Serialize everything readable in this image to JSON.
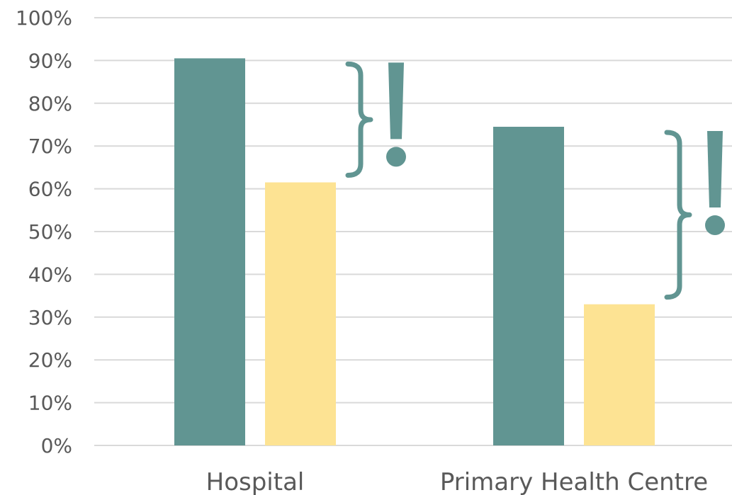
{
  "chart_data": {
    "type": "bar",
    "categories": [
      "Hospital",
      "Primary Health Centre"
    ],
    "series": [
      {
        "values": [
          90.5,
          74.5
        ],
        "color": "#619592"
      },
      {
        "values": [
          61.5,
          33.0
        ],
        "color": "#fde393"
      }
    ],
    "ylim": [
      0,
      100
    ],
    "yticks": [
      "0%",
      "10%",
      "20%",
      "30%",
      "40%",
      "50%",
      "60%",
      "70%",
      "80%",
      "90%",
      "100%"
    ],
    "grid": true,
    "annotations": [
      {
        "category": "Hospital",
        "icon": "brace-exclamation-icon",
        "from": 61.5,
        "to": 90.5
      },
      {
        "category": "Primary Health Centre",
        "icon": "brace-exclamation-icon",
        "from": 33.0,
        "to": 74.5
      }
    ],
    "annotation_color": "#619592"
  }
}
